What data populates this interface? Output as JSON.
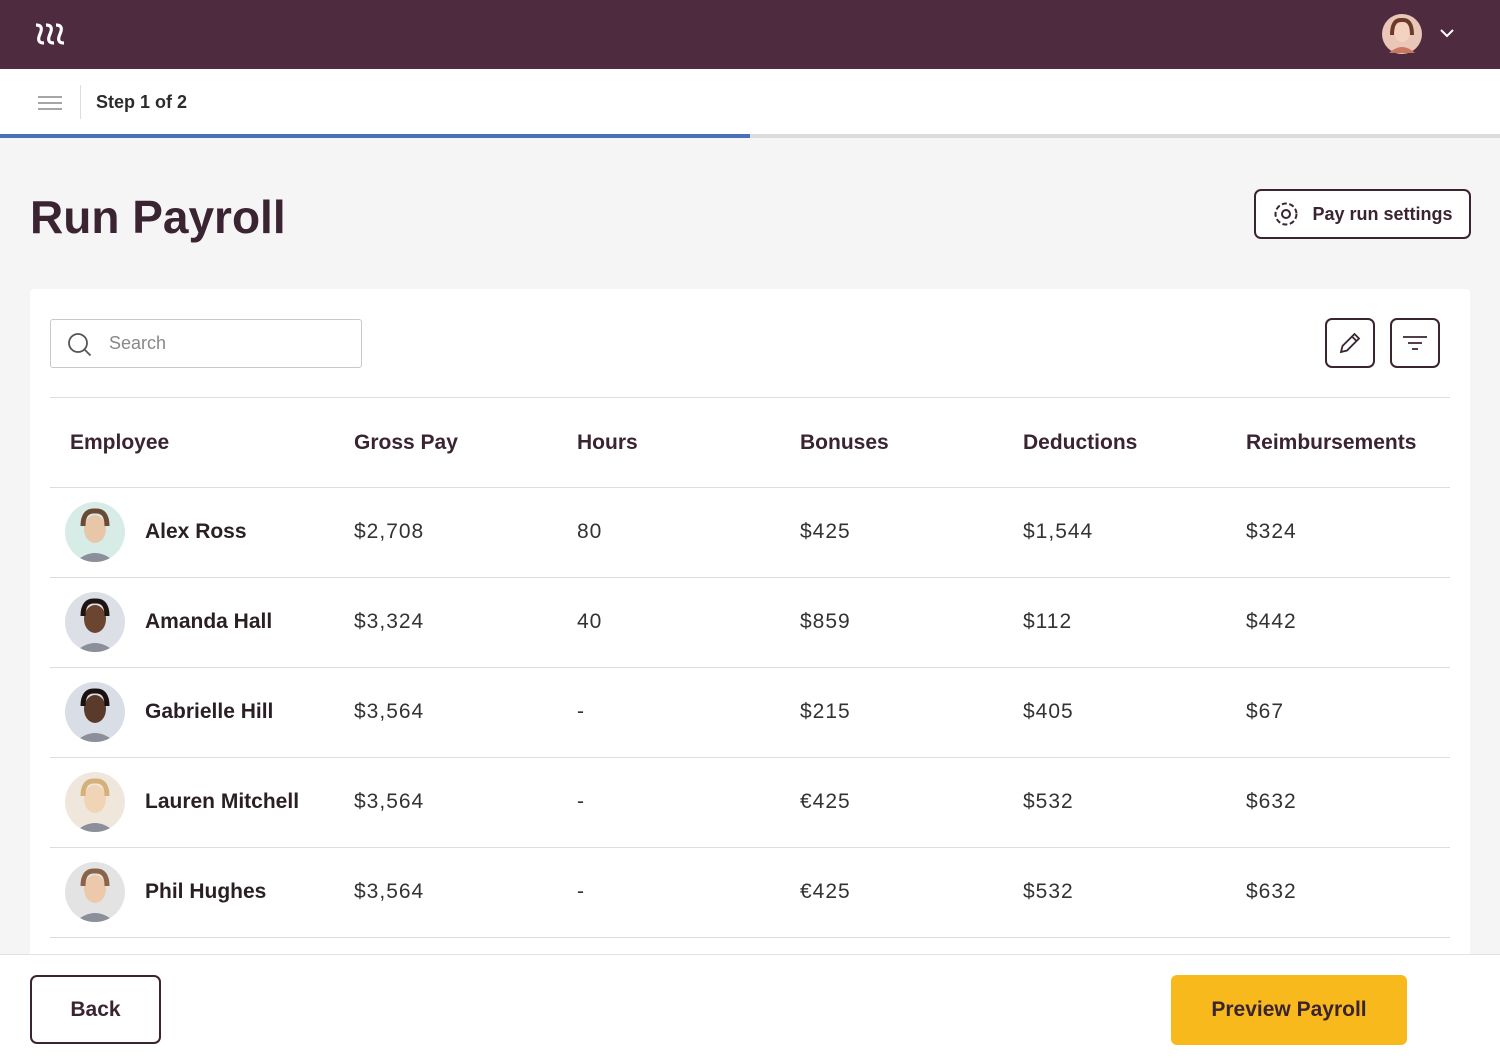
{
  "step": {
    "label": "Step 1 of 2"
  },
  "page": {
    "title": "Run Payroll",
    "settings_button": "Pay run settings"
  },
  "search": {
    "placeholder": "Search"
  },
  "table": {
    "columns": [
      "Employee",
      "Gross Pay",
      "Hours",
      "Bonuses",
      "Deductions",
      "Reimbursements"
    ],
    "rows": [
      [
        "Alex Ross",
        "$2,708",
        "80",
        "$425",
        "$1,544",
        "$324"
      ],
      [
        "Amanda Hall",
        "$3,324",
        "40",
        "$859",
        "$112",
        "$442"
      ],
      [
        "Gabrielle Hill",
        "$3,564",
        "-",
        "$215",
        "$405",
        "$67"
      ],
      [
        "Lauren Mitchell",
        "$3,564",
        "-",
        "€425",
        "$532",
        "$632"
      ],
      [
        "Phil Hughes",
        "$3,564",
        "-",
        "€425",
        "$532",
        "$632"
      ]
    ]
  },
  "footer": {
    "back": "Back",
    "preview": "Preview Payroll"
  }
}
